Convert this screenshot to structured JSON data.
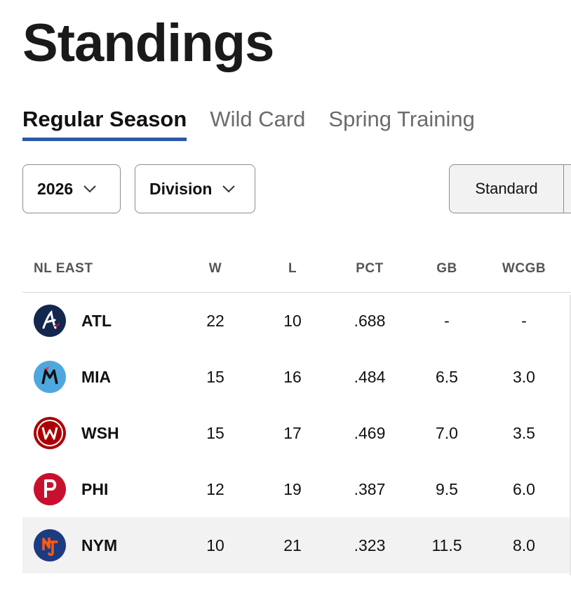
{
  "page": {
    "title": "Standings"
  },
  "tabs": [
    {
      "label": "Regular Season",
      "active": true
    },
    {
      "label": "Wild Card",
      "active": false
    },
    {
      "label": "Spring Training",
      "active": false
    }
  ],
  "filters": {
    "season": "2026",
    "grouping": "Division",
    "view": "Standard"
  },
  "table": {
    "division": "NL EAST",
    "columns": [
      "W",
      "L",
      "PCT",
      "GB",
      "WCGB"
    ],
    "rows": [
      {
        "team": "ATL",
        "logo": "braves-logo-icon",
        "w": "22",
        "l": "10",
        "pct": ".688",
        "gb": "-",
        "wcgb": "-"
      },
      {
        "team": "MIA",
        "logo": "marlins-logo-icon",
        "w": "15",
        "l": "16",
        "pct": ".484",
        "gb": "6.5",
        "wcgb": "3.0"
      },
      {
        "team": "WSH",
        "logo": "nationals-logo-icon",
        "w": "15",
        "l": "17",
        "pct": ".469",
        "gb": "7.0",
        "wcgb": "3.5"
      },
      {
        "team": "PHI",
        "logo": "phillies-logo-icon",
        "w": "12",
        "l": "19",
        "pct": ".387",
        "gb": "9.5",
        "wcgb": "6.0"
      },
      {
        "team": "NYM",
        "logo": "mets-logo-icon",
        "w": "10",
        "l": "21",
        "pct": ".323",
        "gb": "11.5",
        "wcgb": "8.0"
      }
    ]
  },
  "colors": {
    "tab_underline": "#2c57a6",
    "atl": "#13274f",
    "mia": "#4fa8dd",
    "wsh": "#ab0003",
    "phi": "#c8102e",
    "nym": "#1d3b82",
    "nym_accent": "#ff5910"
  }
}
